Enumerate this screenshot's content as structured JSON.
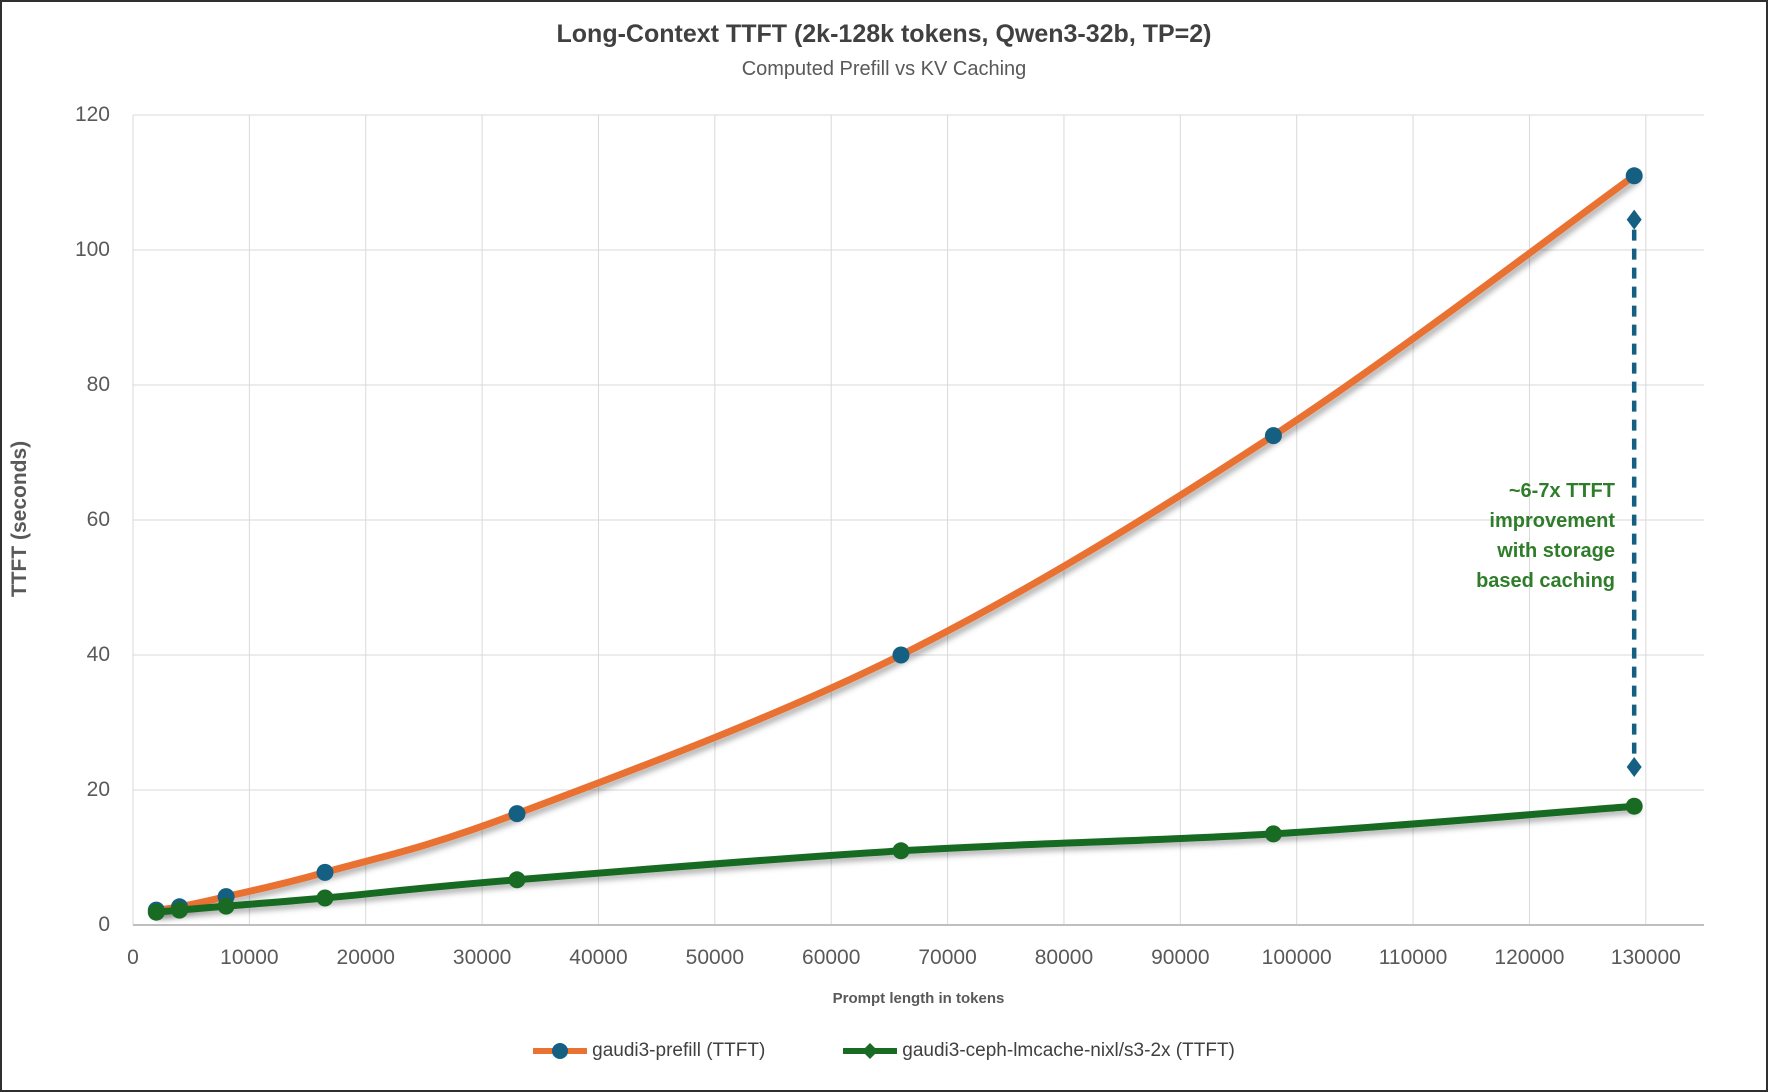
{
  "chart_data": {
    "type": "line",
    "title": "Long-Context TTFT (2k-128k tokens, Qwen3-32b, TP=2)",
    "subtitle": "Computed Prefill vs KV Caching",
    "xlabel": "Prompt length in tokens",
    "ylabel": "TTFT (seconds)",
    "xlim": [
      0,
      135000
    ],
    "ylim": [
      0,
      120
    ],
    "x_ticks": [
      0,
      10000,
      20000,
      30000,
      40000,
      50000,
      60000,
      70000,
      80000,
      90000,
      100000,
      110000,
      120000,
      130000
    ],
    "y_ticks": [
      0,
      20,
      40,
      60,
      80,
      100,
      120
    ],
    "grid": true,
    "smooth_lines": true,
    "legend_position": "bottom",
    "x": [
      2000,
      4000,
      8000,
      16500,
      33000,
      66000,
      98000,
      129000
    ],
    "series": [
      {
        "name": "gaudi3-prefill (TTFT)",
        "line_color": "#E97132",
        "marker_color": "#156082",
        "marker": "circle",
        "values": [
          2.2,
          2.7,
          4.2,
          7.8,
          16.5,
          40.0,
          72.5,
          111.0
        ]
      },
      {
        "name": "gaudi3-ceph-lmcache-nixl/s3-2x (TTFT)",
        "line_color": "#196B24",
        "marker_color": "#196B24",
        "marker": "diamond",
        "values": [
          1.9,
          2.2,
          2.8,
          4.0,
          6.7,
          11.0,
          13.5,
          17.6
        ]
      }
    ],
    "annotation": {
      "text_lines": [
        "~6-7x TTFT",
        "improvement",
        "with storage",
        "based caching"
      ],
      "color": "#2F7D2B",
      "arrow": {
        "x": 129000,
        "y_top": 104.5,
        "y_bottom": 23.4,
        "color": "#156082",
        "style": "dashed-double-diamond"
      }
    },
    "colors": {
      "gridline": "#D9D9D9",
      "axis_line": "#BFBFBF",
      "tick_label": "#595959",
      "title": "#404040",
      "subtitle": "#595959"
    }
  }
}
